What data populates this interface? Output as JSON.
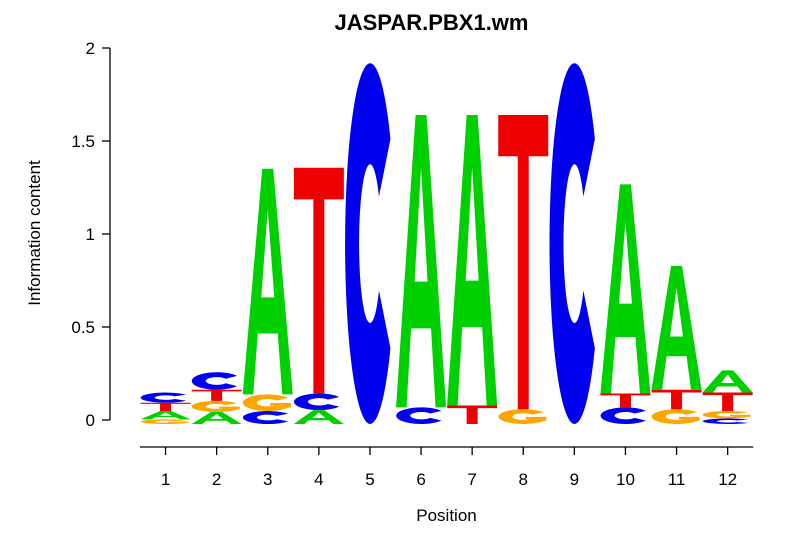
{
  "chart_data": {
    "type": "sequence_logo",
    "title": "JASPAR.PBX1.wm",
    "xlabel": "Position",
    "ylabel": "Information content",
    "ylim": [
      0,
      2
    ],
    "yticks": [
      0,
      0.5,
      1,
      1.5,
      2
    ],
    "ytick_labels": [
      "0",
      "0.5",
      "1",
      "1.5",
      "2"
    ],
    "xticks": [
      1,
      2,
      3,
      4,
      5,
      6,
      7,
      8,
      9,
      10,
      11,
      12
    ],
    "grid": false,
    "colors": {
      "A": "#00D000",
      "C": "#0000EE",
      "G": "#FFA500",
      "T": "#EE0000"
    },
    "stacks": [
      {
        "position": 1,
        "letters": [
          {
            "base": "C",
            "ic": 0.055
          },
          {
            "base": "T",
            "ic": 0.045
          },
          {
            "base": "A",
            "ic": 0.045
          },
          {
            "base": "G",
            "ic": 0.025
          }
        ]
      },
      {
        "position": 2,
        "letters": [
          {
            "base": "C",
            "ic": 0.095
          },
          {
            "base": "T",
            "ic": 0.06
          },
          {
            "base": "G",
            "ic": 0.06
          },
          {
            "base": "A",
            "ic": 0.065
          }
        ]
      },
      {
        "position": 3,
        "letters": [
          {
            "base": "A",
            "ic": 1.22
          },
          {
            "base": "G",
            "ic": 0.09
          },
          {
            "base": "C",
            "ic": 0.07
          }
        ]
      },
      {
        "position": 4,
        "letters": [
          {
            "base": "T",
            "ic": 1.22
          },
          {
            "base": "C",
            "ic": 0.09
          },
          {
            "base": "A",
            "ic": 0.075
          }
        ]
      },
      {
        "position": 5,
        "letters": [
          {
            "base": "C",
            "ic": 1.95
          }
        ]
      },
      {
        "position": 6,
        "letters": [
          {
            "base": "A",
            "ic": 1.58
          },
          {
            "base": "C",
            "ic": 0.09
          }
        ]
      },
      {
        "position": 7,
        "letters": [
          {
            "base": "A",
            "ic": 1.57
          },
          {
            "base": "T",
            "ic": 0.1
          }
        ]
      },
      {
        "position": 8,
        "letters": [
          {
            "base": "T",
            "ic": 1.59
          },
          {
            "base": "G",
            "ic": 0.08
          }
        ]
      },
      {
        "position": 9,
        "letters": [
          {
            "base": "C",
            "ic": 1.95
          }
        ]
      },
      {
        "position": 10,
        "letters": [
          {
            "base": "A",
            "ic": 1.13
          },
          {
            "base": "T",
            "ic": 0.075
          },
          {
            "base": "C",
            "ic": 0.09
          }
        ]
      },
      {
        "position": 11,
        "letters": [
          {
            "base": "A",
            "ic": 0.67
          },
          {
            "base": "T",
            "ic": 0.105
          },
          {
            "base": "G",
            "ic": 0.08
          }
        ]
      },
      {
        "position": 12,
        "letters": [
          {
            "base": "A",
            "ic": 0.12
          },
          {
            "base": "T",
            "ic": 0.1
          },
          {
            "base": "G",
            "ic": 0.04
          },
          {
            "base": "C",
            "ic": 0.03
          }
        ]
      }
    ]
  }
}
